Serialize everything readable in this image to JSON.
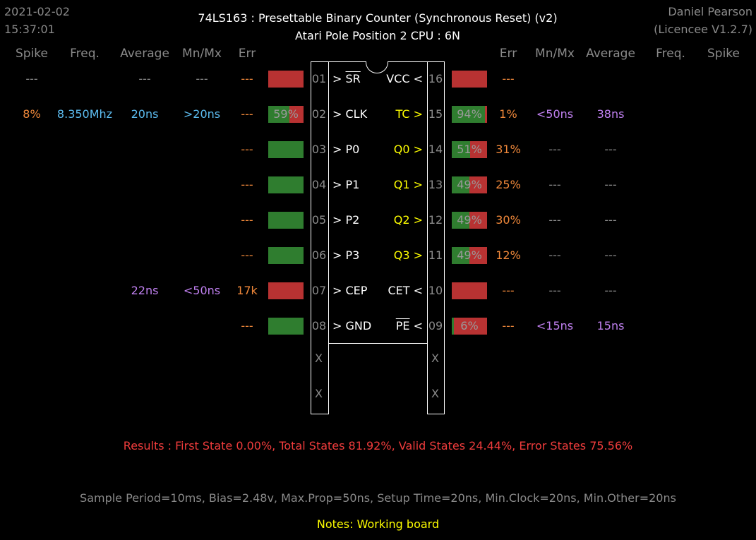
{
  "header": {
    "date": "2021-02-02",
    "time": "15:37:01",
    "title_line1": "74LS163  :  Presettable Binary Counter (Synchronous Reset) (v2)",
    "title_line2": "Atari Pole Position 2 CPU : 6N",
    "author": "Daniel Pearson",
    "licence": "(Licencee V1.2.7)"
  },
  "left_headers": [
    "Spike",
    "Freq.",
    "Average",
    "Mn/Mx",
    "Err"
  ],
  "right_headers": [
    "Err",
    "Mn/Mx",
    "Average",
    "Freq.",
    "Spike"
  ],
  "colors": {
    "bar_red": "#b83232",
    "bar_green": "#2f7d2f",
    "orange": "#f0883a",
    "blue": "#5cbcf0",
    "purple": "#c080f0",
    "yellow": "#ffff00",
    "red": "#f03c3c"
  },
  "left_pins": [
    {
      "num": "01",
      "prefix": "> ",
      "name": "SR",
      "overline": true,
      "spike": "---",
      "freq": "",
      "average": "---",
      "mnmx": "---",
      "err": "---",
      "bar_label": "",
      "bar_fill": 0.0
    },
    {
      "num": "02",
      "prefix": "> ",
      "name": "CLK",
      "overline": false,
      "spike": "8%",
      "freq": "8.350Mhz",
      "average": "20ns",
      "mnmx": ">20ns",
      "err": "---",
      "bar_label": "59%",
      "bar_fill": 0.59
    },
    {
      "num": "03",
      "prefix": "> ",
      "name": "P0",
      "overline": false,
      "spike": "",
      "freq": "",
      "average": "",
      "mnmx": "",
      "err": "---",
      "bar_label": "",
      "bar_fill": 1.0
    },
    {
      "num": "04",
      "prefix": "> ",
      "name": "P1",
      "overline": false,
      "spike": "",
      "freq": "",
      "average": "",
      "mnmx": "",
      "err": "---",
      "bar_label": "",
      "bar_fill": 1.0
    },
    {
      "num": "05",
      "prefix": "> ",
      "name": "P2",
      "overline": false,
      "spike": "",
      "freq": "",
      "average": "",
      "mnmx": "",
      "err": "---",
      "bar_label": "",
      "bar_fill": 1.0
    },
    {
      "num": "06",
      "prefix": "> ",
      "name": "P3",
      "overline": false,
      "spike": "",
      "freq": "",
      "average": "",
      "mnmx": "",
      "err": "---",
      "bar_label": "",
      "bar_fill": 1.0
    },
    {
      "num": "07",
      "prefix": "> ",
      "name": "CEP",
      "overline": false,
      "spike": "",
      "freq": "",
      "average": "22ns",
      "mnmx": "<50ns",
      "err": "17k",
      "bar_label": "",
      "bar_fill": 0.0
    },
    {
      "num": "08",
      "prefix": "> ",
      "name": "GND",
      "overline": false,
      "spike": "",
      "freq": "",
      "average": "",
      "mnmx": "",
      "err": "---",
      "bar_label": "",
      "bar_fill": 1.0
    }
  ],
  "right_pins": [
    {
      "num": "16",
      "name": "VCC",
      "suffix": " <",
      "overline": false,
      "output": false,
      "err": "---",
      "mnmx": "",
      "average": "",
      "freq": "",
      "spike": "",
      "bar_label": "",
      "bar_fill": 0.0
    },
    {
      "num": "15",
      "name": "TC",
      "suffix": " >",
      "overline": false,
      "output": true,
      "err": "1%",
      "mnmx": "<50ns",
      "average": "38ns",
      "freq": "",
      "spike": "",
      "bar_label": "94%",
      "bar_fill": 0.94
    },
    {
      "num": "14",
      "name": "Q0",
      "suffix": " >",
      "overline": false,
      "output": true,
      "err": "31%",
      "mnmx": "---",
      "average": "---",
      "freq": "",
      "spike": "",
      "bar_label": "51%",
      "bar_fill": 0.51
    },
    {
      "num": "13",
      "name": "Q1",
      "suffix": " >",
      "overline": false,
      "output": true,
      "err": "25%",
      "mnmx": "---",
      "average": "---",
      "freq": "",
      "spike": "",
      "bar_label": "49%",
      "bar_fill": 0.49
    },
    {
      "num": "12",
      "name": "Q2",
      "suffix": " >",
      "overline": false,
      "output": true,
      "err": "30%",
      "mnmx": "---",
      "average": "---",
      "freq": "",
      "spike": "",
      "bar_label": "49%",
      "bar_fill": 0.49
    },
    {
      "num": "11",
      "name": "Q3",
      "suffix": " >",
      "overline": false,
      "output": true,
      "err": "12%",
      "mnmx": "---",
      "average": "---",
      "freq": "",
      "spike": "",
      "bar_label": "49%",
      "bar_fill": 0.49
    },
    {
      "num": "10",
      "name": "CET",
      "suffix": " <",
      "overline": false,
      "output": false,
      "err": "---",
      "mnmx": "---",
      "average": "---",
      "freq": "",
      "spike": "",
      "bar_label": "",
      "bar_fill": 0.0
    },
    {
      "num": "09",
      "name": "PE",
      "suffix": " <",
      "overline": true,
      "output": false,
      "err": "---",
      "mnmx": "<15ns",
      "average": "15ns",
      "freq": "",
      "spike": "",
      "bar_label": "6%",
      "bar_fill": 0.06
    }
  ],
  "extra_pins": {
    "left": [
      "X",
      "X"
    ],
    "right": [
      "X",
      "X"
    ]
  },
  "results": "Results  :  First State 0.00%,  Total States 81.92%,  Valid States 24.44%,  Error States 75.56%",
  "settings": "Sample Period=10ms,  Bias=2.48v,  Max.Prop=50ns,  Setup Time=20ns,  Min.Clock=20ns,  Min.Other=20ns",
  "notes": "Notes:  Working board"
}
